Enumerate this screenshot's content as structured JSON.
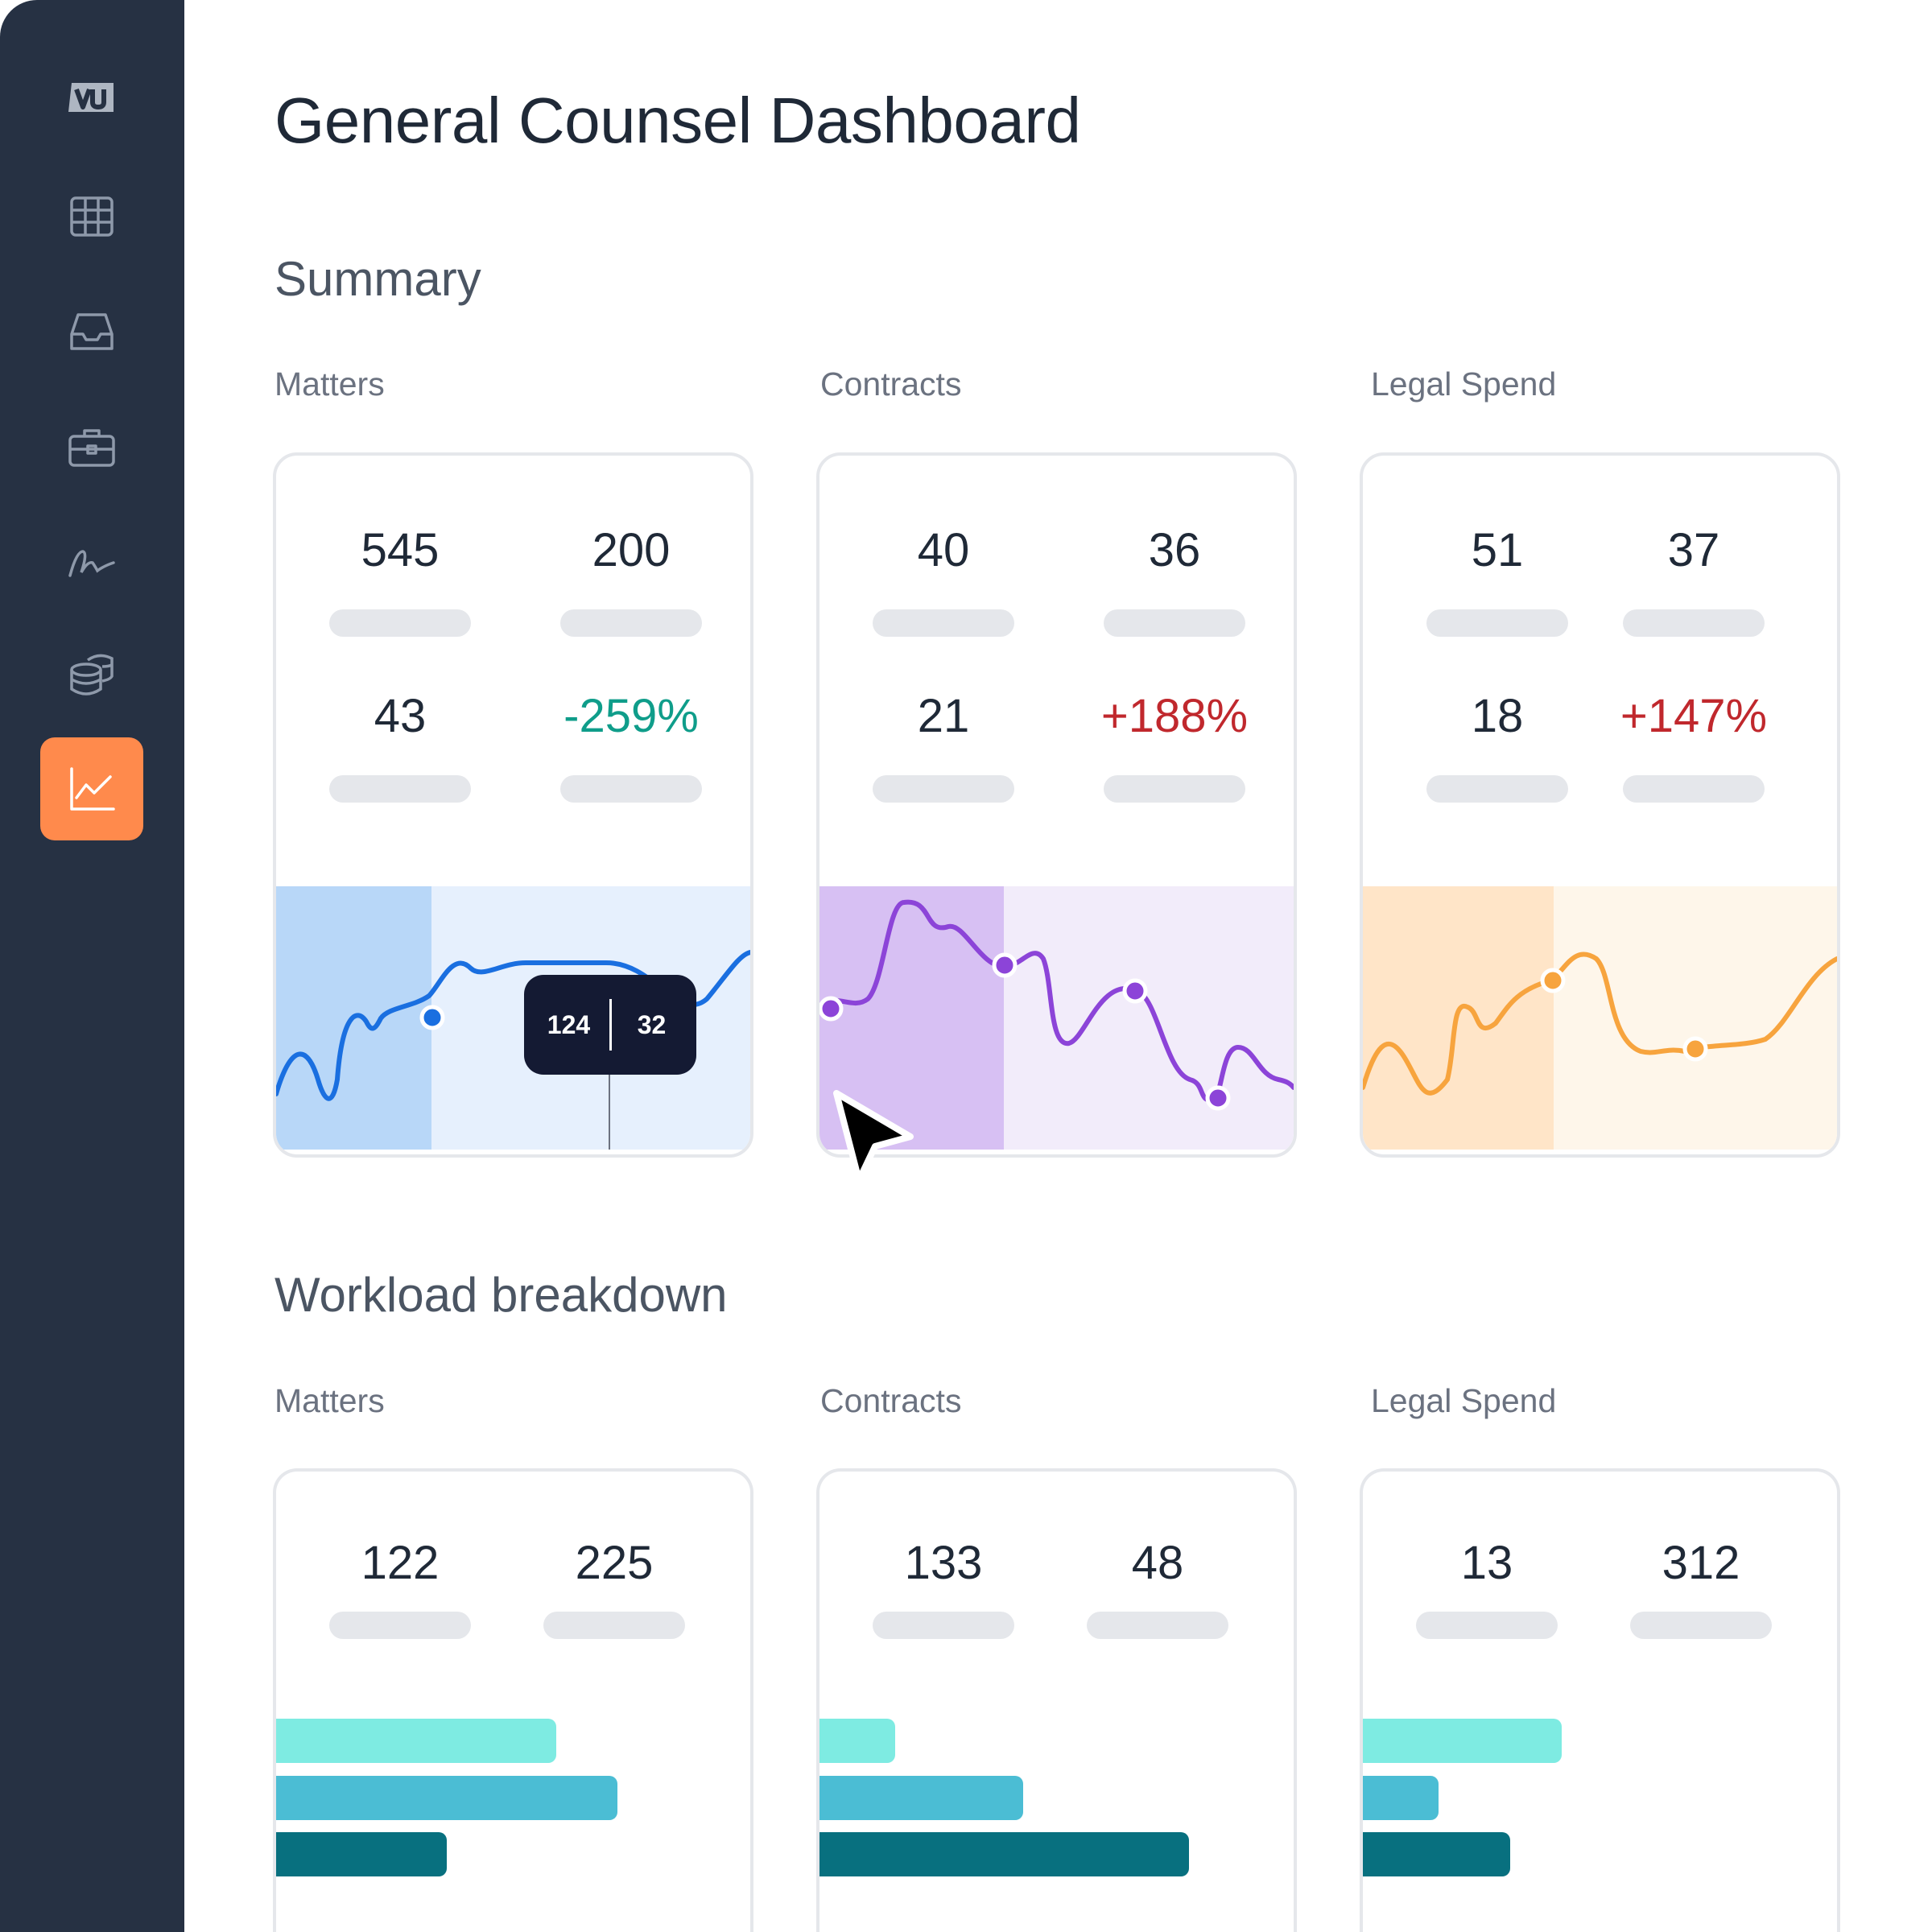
{
  "title": "General Counsel Dashboard",
  "sidebar": {
    "icons": [
      "logo-icon",
      "grid-icon",
      "inbox-icon",
      "briefcase-icon",
      "signature-icon",
      "database-icon",
      "chart-icon"
    ],
    "active": "chart-icon",
    "active_color": "#ff8a4c"
  },
  "summary": {
    "heading": "Summary",
    "cards": [
      {
        "label": "Matters",
        "stats": [
          "545",
          "200",
          "43",
          "-259%"
        ],
        "change_trend": "down-good",
        "color": "#1a6fe0",
        "tooltip": [
          "124",
          "32"
        ]
      },
      {
        "label": "Contracts",
        "stats": [
          "40",
          "36",
          "21",
          "+188%"
        ],
        "change_trend": "up-bad",
        "color": "#8c44d8"
      },
      {
        "label": "Legal Spend",
        "stats": [
          "51",
          "37",
          "18",
          "+147%"
        ],
        "change_trend": "up-bad",
        "color": "#f7a43e"
      }
    ]
  },
  "workload": {
    "heading": "Workload breakdown",
    "cards": [
      {
        "label": "Matters",
        "stats": [
          "122",
          "225"
        ],
        "bars": [
          0.59,
          0.72,
          0.36
        ]
      },
      {
        "label": "Contracts",
        "stats": [
          "133",
          "48"
        ],
        "bars": [
          0.16,
          0.43,
          0.78
        ]
      },
      {
        "label": "Legal Spend",
        "stats": [
          "13",
          "312"
        ],
        "bars": [
          0.42,
          0.16,
          0.31
        ]
      }
    ],
    "bar_colors": [
      "#7eebe2",
      "#4bbdd4",
      "#08707f"
    ]
  }
}
